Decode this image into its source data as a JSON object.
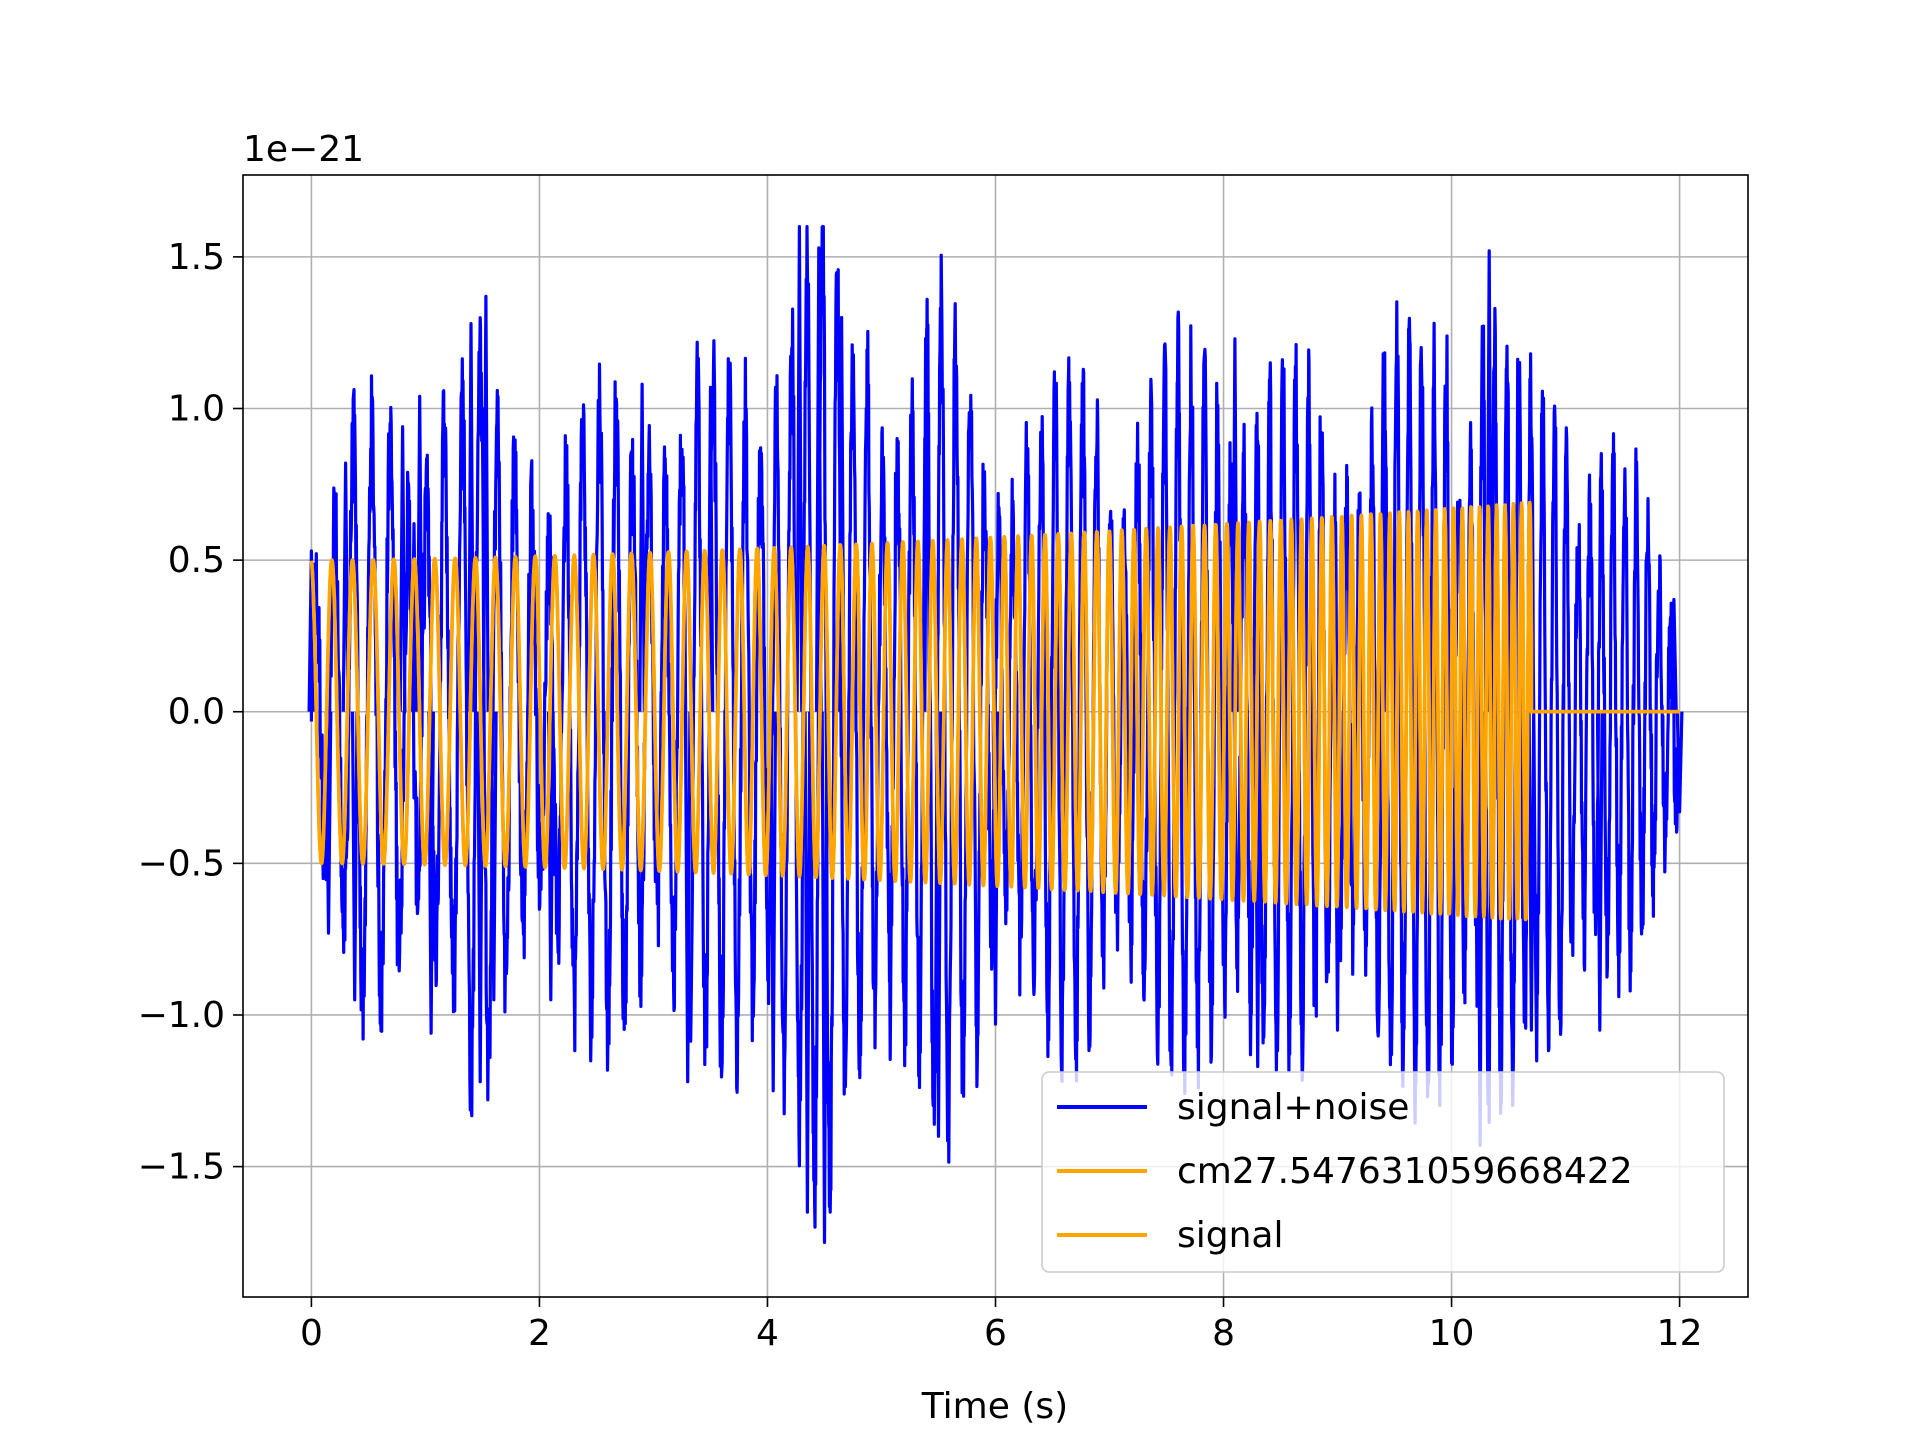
{
  "chart_data": {
    "type": "line",
    "title": "",
    "xlabel": "Time (s)",
    "ylabel": "",
    "offset_text": "1e−21",
    "xlim": [
      -0.6,
      12.6
    ],
    "ylim": [
      -1.93,
      1.77
    ],
    "x_ticks": [
      0,
      2,
      4,
      6,
      8,
      10,
      12
    ],
    "x_tick_labels": [
      "0",
      "2",
      "4",
      "6",
      "8",
      "10",
      "12"
    ],
    "y_ticks": [
      1.5,
      1.0,
      0.5,
      0.0,
      -0.5,
      -1.0,
      -1.5
    ],
    "y_tick_labels": [
      "1.5",
      "1.0",
      "0.5",
      "0.0",
      "−0.5",
      "−1.0",
      "−1.5"
    ],
    "grid": true,
    "legend_position": "lower-right",
    "series": [
      {
        "name": "signal+noise",
        "color": "#0000ff",
        "style": "noisy chirp",
        "x_range": [
          0,
          12
        ],
        "envelope_peaks": [
          [
            0.0,
            0.53
          ],
          [
            0.15,
            -0.73
          ],
          [
            0.3,
            0.82
          ],
          [
            0.38,
            -0.95
          ],
          [
            0.8,
            0.94
          ],
          [
            0.9,
            0.62
          ],
          [
            0.95,
            1.04
          ],
          [
            1.05,
            -1.06
          ],
          [
            1.4,
            1.28
          ],
          [
            1.48,
            -1.22
          ],
          [
            1.53,
            1.37
          ],
          [
            1.6,
            -0.95
          ],
          [
            2.1,
            -0.95
          ],
          [
            2.9,
            1.08
          ],
          [
            3.3,
            -1.22
          ],
          [
            3.5,
            1.07
          ],
          [
            4.05,
            -1.25
          ],
          [
            4.28,
            1.6
          ],
          [
            4.35,
            -1.65
          ],
          [
            4.45,
            1.53
          ],
          [
            4.5,
            -1.75
          ],
          [
            4.65,
            1.3
          ],
          [
            5.4,
            1.36
          ],
          [
            5.5,
            -1.4
          ],
          [
            6.0,
            -1.03
          ],
          [
            8.1,
            1.23
          ],
          [
            8.3,
            -1.17
          ],
          [
            9.0,
            -1.05
          ],
          [
            9.4,
            1.18
          ],
          [
            10.25,
            -1.43
          ],
          [
            10.33,
            1.52
          ],
          [
            10.7,
            -1.05
          ],
          [
            11.3,
            -1.05
          ],
          [
            11.95,
            0.37
          ],
          [
            12.0,
            -0.33
          ]
        ]
      },
      {
        "name": "cm27.547631059668422",
        "color": "#ffa500",
        "style": "chirp",
        "x_range": [
          0,
          10.7
        ],
        "amplitude_start": 0.5,
        "amplitude_end": 0.69,
        "frequency_start_hz": 5.5,
        "frequency_end_hz": 14
      },
      {
        "name": "signal",
        "color": "#ffa500",
        "style": "chirp",
        "x_range": [
          0,
          10.7
        ],
        "amplitude_start": 0.5,
        "amplitude_end": 0.69,
        "frequency_start_hz": 5.5,
        "frequency_end_hz": 14
      }
    ]
  }
}
